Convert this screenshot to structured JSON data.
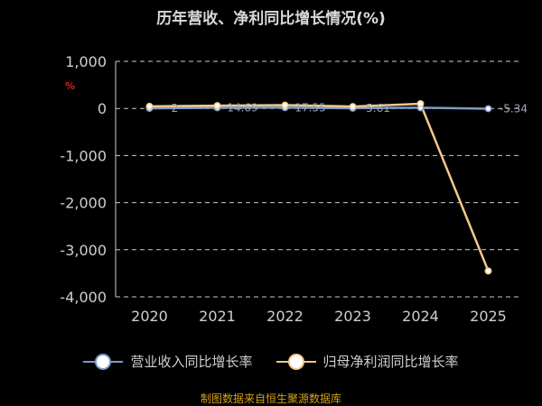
{
  "title": "历年营收、净利同比增长情况(%)",
  "unit_label": "%",
  "source_text": "制图数据来自恒生聚源数据库",
  "colors": {
    "background": "#000000",
    "revenue_line": "#7b9cc9",
    "profit_line": "#f5c98a",
    "grid": "#cccccc",
    "axis_text": "#cfcfcf",
    "source_text": "#d4a017",
    "unit": "#e02020"
  },
  "chart_data": {
    "type": "line",
    "title": "历年营收、净利同比增长情况(%)",
    "categories": [
      "2020",
      "2021",
      "2022",
      "2023",
      "2024",
      "2025"
    ],
    "ylim": [
      -4000,
      1000
    ],
    "yticks": [
      1000,
      0,
      -1000,
      -2000,
      -3000,
      -4000
    ],
    "ytick_labels": [
      "1,000",
      "0",
      "-1,000",
      "-2,000",
      "-3,000",
      "-4,000"
    ],
    "grid": true,
    "legend_position": "bottom",
    "series": [
      {
        "name": "营业收入同比增长率",
        "values": [
          2,
          14.69,
          17.55,
          5.61,
          15,
          -5.34
        ],
        "labels": [
          "2",
          "14.69",
          "17.55",
          "5.61",
          "",
          "-5.34"
        ],
        "color": "#7b9cc9"
      },
      {
        "name": "归母净利润同比增长率",
        "values": [
          45,
          60,
          70,
          40,
          100,
          -3450
        ],
        "color": "#f5c98a"
      }
    ]
  }
}
